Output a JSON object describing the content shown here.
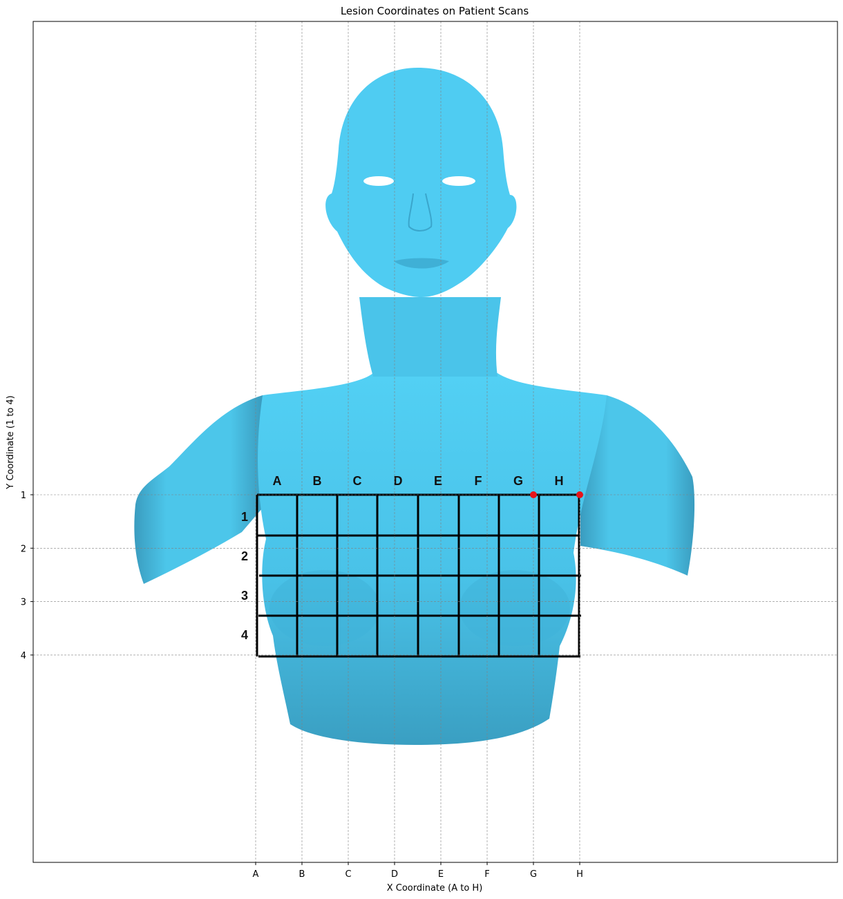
{
  "chart_data": {
    "type": "scatter",
    "title": "Lesion Coordinates on Patient Scans",
    "xlabel": "X Coordinate (A to H)",
    "ylabel": "Y Coordinate (1 to 4)",
    "x_ticks": [
      "A",
      "B",
      "C",
      "D",
      "E",
      "F",
      "G",
      "H"
    ],
    "y_ticks": [
      "1",
      "2",
      "3",
      "4"
    ],
    "y_inverted": true,
    "grid": true,
    "background_image": {
      "subject": "blue 3D female torso model with overlaid lettered/numbered grid",
      "grid_column_labels": [
        "A",
        "B",
        "C",
        "D",
        "E",
        "F",
        "G",
        "H"
      ],
      "grid_row_labels": [
        "1",
        "2",
        "3",
        "4"
      ]
    },
    "series": [
      {
        "points": [
          {
            "x": "G",
            "y": 1
          },
          {
            "x": "H",
            "y": 1
          }
        ],
        "color": "#e8141a"
      }
    ]
  },
  "colors": {
    "body": "#4cc8ec",
    "body_shadow": "#3aa2c4",
    "marker": "#e8141a",
    "grid": "#808080"
  }
}
